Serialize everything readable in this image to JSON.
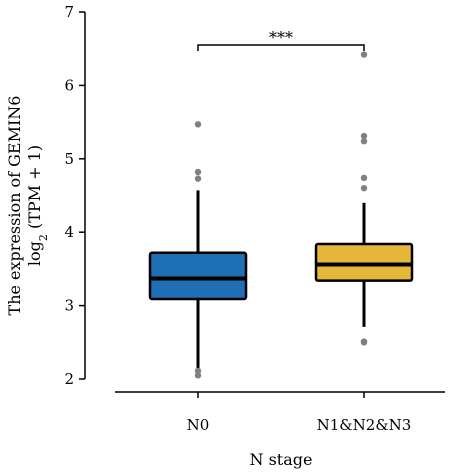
{
  "chart_data": {
    "type": "box",
    "title": "",
    "xlabel": "N stage",
    "ylabel_line1": "The expression of GEMIN6",
    "ylabel_line2_prefix": "log",
    "ylabel_line2_sub": "2",
    "ylabel_line2_suffix": " (TPM + 1)",
    "ylim": [
      2,
      7
    ],
    "yticks": [
      "2",
      "3",
      "4",
      "5",
      "6",
      "7"
    ],
    "categories": [
      "N0",
      "N1&N2&N3"
    ],
    "boxes": [
      {
        "name": "N0",
        "color": "#1f6fb4",
        "whisker_low": 2.15,
        "q1": 3.09,
        "median": 3.37,
        "q3": 3.72,
        "whisker_high": 4.57,
        "outliers": [
          2.11,
          2.05,
          4.73,
          4.82,
          5.47
        ]
      },
      {
        "name": "N1&N2&N3",
        "color": "#e6b83a",
        "whisker_low": 2.71,
        "q1": 3.34,
        "median": 3.56,
        "q3": 3.84,
        "whisker_high": 4.4,
        "outliers": [
          2.5,
          2.51,
          4.6,
          4.74,
          5.24,
          5.31,
          6.42
        ]
      }
    ],
    "significance": {
      "label": "***",
      "between": [
        "N0",
        "N1&N2&N3"
      ],
      "y": 6.55
    }
  }
}
